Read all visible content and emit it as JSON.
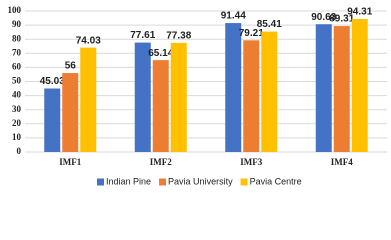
{
  "chart_data": {
    "type": "bar",
    "categories": [
      "IMF1",
      "IMF2",
      "IMF3",
      "IMF4"
    ],
    "series": [
      {
        "name": "Indian Pine",
        "color": "#4472c4",
        "values": [
          45.03,
          77.61,
          91.44,
          90.63
        ]
      },
      {
        "name": "Pavia University",
        "color": "#ed7d31",
        "values": [
          56,
          65.14,
          79.21,
          89.31
        ]
      },
      {
        "name": "Pavia  Centre",
        "color": "#ffc000",
        "values": [
          74.03,
          77.38,
          85.41,
          94.31
        ]
      }
    ],
    "ylim": [
      0,
      100
    ],
    "yticks": [
      0,
      10,
      20,
      30,
      40,
      50,
      60,
      70,
      80,
      90,
      100
    ],
    "grid": true,
    "legend": "bottom"
  }
}
